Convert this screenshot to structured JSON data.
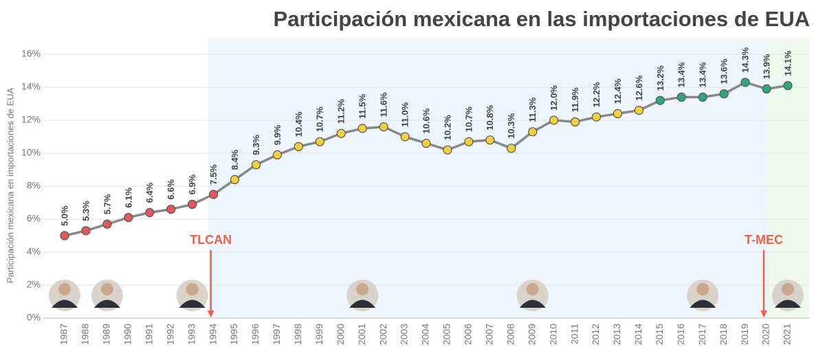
{
  "chart_data": {
    "type": "line",
    "title": "Participación mexicana en las importaciones de EUA",
    "y_label": "Participación mexicana en importaciones de EUA",
    "categories": [
      "1987",
      "1988",
      "1989",
      "1990",
      "1991",
      "1992",
      "1993",
      "1994",
      "1995",
      "1996",
      "1997",
      "1998",
      "1999",
      "2000",
      "2001",
      "2002",
      "2003",
      "2004",
      "2005",
      "2006",
      "2007",
      "2008",
      "2009",
      "2010",
      "2011",
      "2012",
      "2013",
      "2014",
      "2015",
      "2016",
      "2017",
      "2018",
      "2019",
      "2020",
      "2021"
    ],
    "values": [
      5.0,
      5.3,
      5.7,
      6.1,
      6.4,
      6.6,
      6.9,
      7.5,
      8.4,
      9.3,
      9.9,
      10.4,
      10.7,
      11.2,
      11.5,
      11.6,
      11.0,
      10.6,
      10.2,
      10.7,
      10.8,
      10.3,
      11.3,
      12.0,
      11.9,
      12.2,
      12.4,
      12.6,
      13.2,
      13.4,
      13.4,
      13.6,
      14.3,
      13.9,
      14.1
    ],
    "value_labels": [
      "5.0%",
      "5.3%",
      "5.7%",
      "6.1%",
      "6.4%",
      "6.6%",
      "6.9%",
      "7.5%",
      "8.4%",
      "9.3%",
      "9.9%",
      "10.4%",
      "10.7%",
      "11.2%",
      "11.5%",
      "11.6%",
      "11.0%",
      "10.6%",
      "10.2%",
      "10.7%",
      "10.8%",
      "10.3%",
      "11.3%",
      "12.0%",
      "11.9%",
      "12.2%",
      "12.4%",
      "12.6%",
      "13.2%",
      "13.4%",
      "13.4%",
      "13.6%",
      "14.3%",
      "13.9%",
      "14.1%"
    ],
    "line_color": "#888888",
    "point_colors": [
      "#e05a5a",
      "#e05a5a",
      "#e05a5a",
      "#e05a5a",
      "#e05a5a",
      "#e05a5a",
      "#e05a5a",
      "#e05a5a",
      "#f0d040",
      "#f0d040",
      "#f0d040",
      "#f0d040",
      "#f0d040",
      "#f0d040",
      "#f0d040",
      "#f0d040",
      "#f0d040",
      "#f0d040",
      "#f0d040",
      "#f0d040",
      "#f0d040",
      "#f0d040",
      "#f0d040",
      "#f0d040",
      "#f0d040",
      "#f0d040",
      "#f0d040",
      "#f0d040",
      "#2ea87a",
      "#2ea87a",
      "#2ea87a",
      "#2ea87a",
      "#2ea87a",
      "#2ea87a",
      "#2ea87a"
    ],
    "ylim": [
      0,
      17
    ],
    "yticks": [
      {
        "value": 0,
        "label": "0%"
      },
      {
        "value": 2,
        "label": "2%"
      },
      {
        "value": 4,
        "label": "4%"
      },
      {
        "value": 6,
        "label": "6%"
      },
      {
        "value": 8,
        "label": "8%"
      },
      {
        "value": 10,
        "label": "10%"
      },
      {
        "value": 12,
        "label": "12%"
      },
      {
        "value": 14,
        "label": "14%"
      },
      {
        "value": 16,
        "label": "16%"
      }
    ],
    "grid": true,
    "regions": [
      {
        "from": "1994",
        "to": "2020",
        "color": "#eef5fc"
      },
      {
        "from": "2020",
        "to": "2021",
        "color": "#eef8ee"
      }
    ],
    "annotations": [
      {
        "text": "TLCAN",
        "at": "1994",
        "color": "#f0604a"
      },
      {
        "text": "T-MEC",
        "at": "2020",
        "color": "#f0604a"
      }
    ]
  }
}
